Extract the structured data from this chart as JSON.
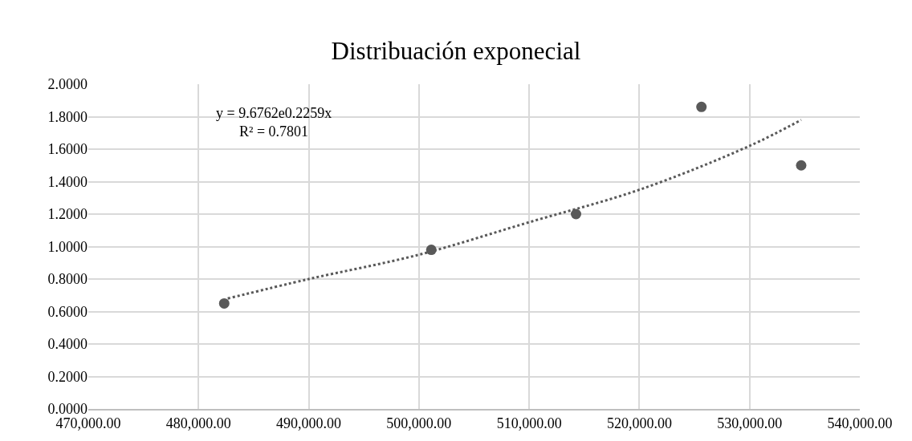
{
  "chart_data": {
    "type": "scatter",
    "title": "Distribuación exponecial",
    "xlim": [
      470000,
      540000
    ],
    "xticks": [
      {
        "value": 470000,
        "label": "470,000.00"
      },
      {
        "value": 480000,
        "label": "480,000.00"
      },
      {
        "value": 490000,
        "label": "490,000.00"
      },
      {
        "value": 500000,
        "label": "500,000.00"
      },
      {
        "value": 510000,
        "label": "510,000.00"
      },
      {
        "value": 520000,
        "label": "520,000.00"
      },
      {
        "value": 530000,
        "label": "530,000.00"
      },
      {
        "value": 540000,
        "label": "540,000.00"
      }
    ],
    "ylim": [
      0,
      2
    ],
    "yticks": [
      {
        "value": 0,
        "label": "0.0000"
      },
      {
        "value": 0.2,
        "label": "0.2000"
      },
      {
        "value": 0.4,
        "label": "0.4000"
      },
      {
        "value": 0.6,
        "label": "0.6000"
      },
      {
        "value": 0.8,
        "label": "0.8000"
      },
      {
        "value": 1,
        "label": "1.0000"
      },
      {
        "value": 1.2,
        "label": "1.2000"
      },
      {
        "value": 1.4,
        "label": "1.4000"
      },
      {
        "value": 1.6,
        "label": "1.6000"
      },
      {
        "value": 1.8,
        "label": "1.8000"
      },
      {
        "value": 2,
        "label": "2.0000"
      }
    ],
    "grid": true,
    "marker": "circle",
    "series": [
      {
        "color": "#595959",
        "x": [
          482330,
          501120,
          514250,
          525630,
          534680
        ],
        "values": [
          0.65,
          0.98,
          1.2,
          1.86,
          1.5
        ]
      },
      {
        "type": "line",
        "color": "#595959",
        "line_style": "dotted",
        "marker": "none",
        "x": [
          482650,
          490000,
          500000,
          510000,
          520000,
          530000,
          534680
        ],
        "values": [
          0.68,
          0.8,
          0.95,
          1.15,
          1.35,
          1.62,
          1.78
        ]
      }
    ],
    "annotations": [
      "y = 9.6762e0.2259x\nR² = 0.7801"
    ]
  }
}
